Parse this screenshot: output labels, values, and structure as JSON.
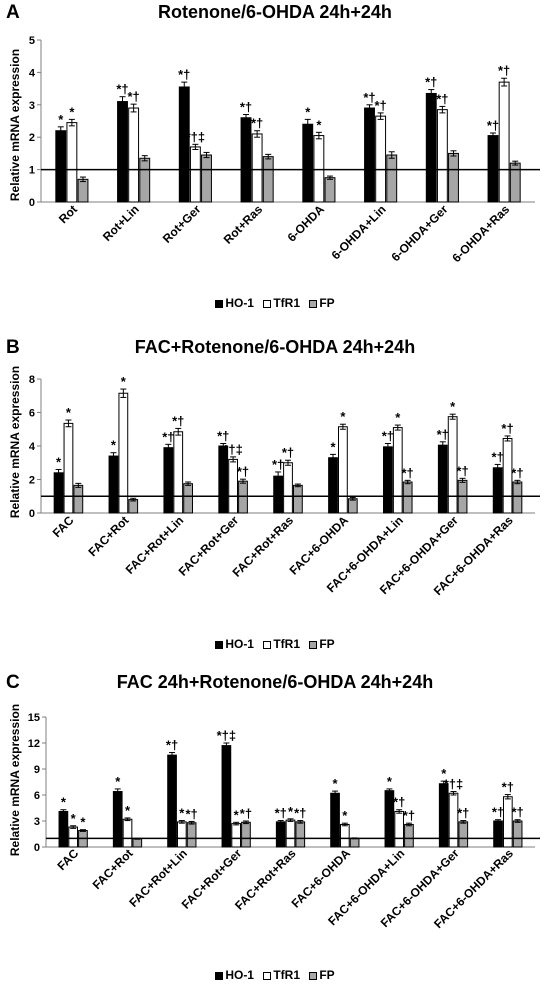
{
  "chart_data": [
    {
      "type": "bar",
      "panel_label": "A",
      "title": "Rotenone/6-OHDA 24h+24h",
      "ylabel": "Relative mRNA expression",
      "ylim": [
        0,
        5
      ],
      "yticks": [
        0,
        1,
        2,
        3,
        4,
        5
      ],
      "reference_line": 1,
      "categories": [
        "Rot",
        "Rot+Lin",
        "Rot+Ger",
        "Rot+Ras",
        "6-OHDA",
        "6-OHDA+Lin",
        "6-OHDA+Ger",
        "6-OHDA+Ras"
      ],
      "series": [
        {
          "name": "HO-1",
          "color": "#000000",
          "values": [
            2.2,
            3.1,
            3.55,
            2.6,
            2.4,
            2.9,
            3.35,
            2.05
          ],
          "errors": [
            0.12,
            0.15,
            0.15,
            0.1,
            0.15,
            0.1,
            0.12,
            0.08
          ],
          "annotations": [
            "*",
            "*†",
            "*†",
            "*†",
            "*",
            "*†",
            "*†",
            "*†"
          ]
        },
        {
          "name": "TfR1",
          "color": "#ffffff",
          "values": [
            2.45,
            2.9,
            1.7,
            2.1,
            2.05,
            2.65,
            2.85,
            3.7
          ],
          "errors": [
            0.1,
            0.12,
            0.08,
            0.1,
            0.1,
            0.1,
            0.1,
            0.12
          ],
          "annotations": [
            "*",
            "*†",
            "*†‡",
            "*†",
            "*",
            "*†",
            "*†",
            "*†"
          ]
        },
        {
          "name": "FP",
          "color": "#a6a6a6",
          "values": [
            0.7,
            1.35,
            1.45,
            1.4,
            0.75,
            1.45,
            1.5,
            1.2
          ],
          "errors": [
            0.07,
            0.08,
            0.08,
            0.07,
            0.05,
            0.1,
            0.08,
            0.06
          ],
          "annotations": [
            "",
            "",
            "",
            "",
            "",
            "",
            "",
            ""
          ]
        }
      ]
    },
    {
      "type": "bar",
      "panel_label": "B",
      "title": "FAC+Rotenone/6-OHDA 24h+24h",
      "ylabel": "Relative mRNA expression",
      "ylim": [
        0,
        8
      ],
      "yticks": [
        0,
        2,
        4,
        6,
        8
      ],
      "reference_line": 1,
      "categories": [
        "FAC",
        "FAC+Rot",
        "FAC+Rot+Lin",
        "FAC+Rot+Ger",
        "FAC+Rot+Ras",
        "FAC+6-OHDA",
        "FAC+6-OHDA+Lin",
        "FAC+6-OHDA+Ger",
        "FAC+6-OHDA+Ras"
      ],
      "series": [
        {
          "name": "HO-1",
          "color": "#000000",
          "values": [
            2.4,
            3.4,
            3.9,
            4.0,
            2.2,
            3.3,
            3.95,
            4.05,
            2.7
          ],
          "errors": [
            0.2,
            0.2,
            0.2,
            0.15,
            0.25,
            0.2,
            0.2,
            0.2,
            0.2
          ],
          "annotations": [
            "*",
            "*",
            "*†",
            "*†",
            "*†",
            "*",
            "*†",
            "*†",
            "*†"
          ]
        },
        {
          "name": "TfR1",
          "color": "#ffffff",
          "values": [
            5.35,
            7.15,
            4.85,
            3.2,
            3.0,
            5.15,
            5.1,
            5.75,
            4.45
          ],
          "errors": [
            0.2,
            0.25,
            0.2,
            0.15,
            0.15,
            0.15,
            0.15,
            0.15,
            0.15
          ],
          "annotations": [
            "*",
            "*",
            "*†",
            "*†‡",
            "*†",
            "*",
            "*",
            "*",
            "*†"
          ]
        },
        {
          "name": "FP",
          "color": "#a6a6a6",
          "values": [
            1.65,
            0.8,
            1.75,
            1.9,
            1.65,
            0.85,
            1.85,
            1.95,
            1.85
          ],
          "errors": [
            0.12,
            0.08,
            0.1,
            0.12,
            0.08,
            0.08,
            0.1,
            0.12,
            0.1
          ],
          "annotations": [
            "",
            "",
            "",
            "*†",
            "",
            "",
            "*†",
            "*†",
            "*†"
          ]
        }
      ]
    },
    {
      "type": "bar",
      "panel_label": "C",
      "title": "FAC 24h+Rotenone/6-OHDA 24h+24h",
      "ylabel": "Relative mRNA expression",
      "ylim": [
        0,
        15
      ],
      "yticks": [
        0,
        3,
        6,
        9,
        12,
        15
      ],
      "reference_line": 1,
      "categories": [
        "FAC",
        "FAC+Rot",
        "FAC+Rot+Lin",
        "FAC+Rot+Ger",
        "FAC+Rot+Ras",
        "FAC+6-OHDA",
        "FAC+6-OHDA+Lin",
        "FAC+6-OHDA+Ger",
        "FAC+6-OHDA+Ras"
      ],
      "series": [
        {
          "name": "HO-1",
          "color": "#000000",
          "values": [
            4.1,
            6.4,
            10.6,
            11.7,
            2.9,
            6.2,
            6.5,
            7.3,
            3.0
          ],
          "errors": [
            0.2,
            0.3,
            0.3,
            0.3,
            0.15,
            0.25,
            0.2,
            0.3,
            0.15
          ],
          "annotations": [
            "*",
            "*",
            "*†",
            "*†‡",
            "*†",
            "*",
            "*",
            "*",
            "*†"
          ]
        },
        {
          "name": "TfR1",
          "color": "#ffffff",
          "values": [
            2.3,
            3.2,
            2.9,
            2.7,
            3.1,
            2.6,
            4.1,
            6.2,
            5.8
          ],
          "errors": [
            0.15,
            0.15,
            0.15,
            0.15,
            0.15,
            0.15,
            0.2,
            0.2,
            0.25
          ],
          "annotations": [
            "*",
            "*",
            "*",
            "*",
            "*",
            "*",
            "*†",
            "*†‡",
            "*†"
          ]
        },
        {
          "name": "FP",
          "color": "#a6a6a6",
          "values": [
            1.9,
            0.95,
            2.8,
            2.85,
            2.9,
            1.0,
            2.6,
            2.9,
            3.0
          ],
          "errors": [
            0.1,
            0.05,
            0.15,
            0.15,
            0.15,
            0.05,
            0.15,
            0.15,
            0.15
          ],
          "annotations": [
            "*",
            "",
            "*†",
            "*†",
            "*†",
            "",
            "*†",
            "*†",
            "*†"
          ]
        }
      ]
    }
  ]
}
